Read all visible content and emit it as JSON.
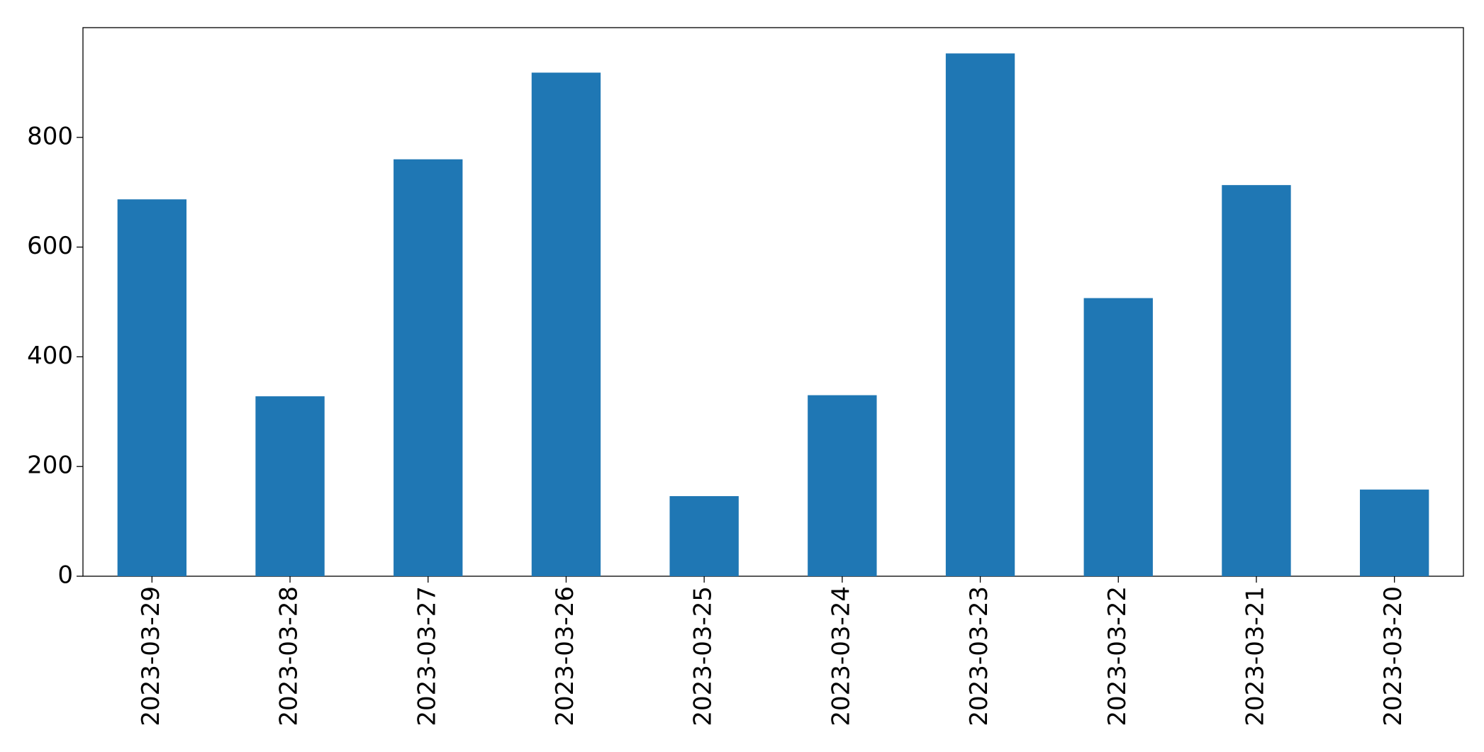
{
  "chart_data": {
    "type": "bar",
    "categories": [
      "2023-03-29",
      "2023-03-28",
      "2023-03-27",
      "2023-03-26",
      "2023-03-25",
      "2023-03-24",
      "2023-03-23",
      "2023-03-22",
      "2023-03-21",
      "2023-03-20"
    ],
    "values": [
      687,
      328,
      760,
      918,
      146,
      330,
      953,
      507,
      713,
      158
    ],
    "color": "#1f77b4",
    "ylim": [
      0,
      1000
    ],
    "yticks": [
      0,
      200,
      400,
      600,
      800
    ],
    "grid": false
  }
}
